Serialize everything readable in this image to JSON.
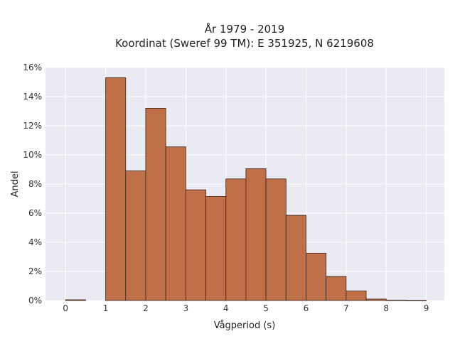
{
  "chart_data": {
    "type": "bar",
    "title_lines": [
      "År 1979 - 2019",
      "Koordinat (Sweref 99 TM): E 351925, N 6219608"
    ],
    "xlabel": "Vågperiod (s)",
    "ylabel": "Andel",
    "x_ticks": [
      0,
      1,
      2,
      3,
      4,
      5,
      6,
      7,
      8,
      9
    ],
    "y_ticks": [
      "0%",
      "2%",
      "4%",
      "6%",
      "8%",
      "10%",
      "12%",
      "14%",
      "16%"
    ],
    "xlim": [
      -0.5,
      9.45
    ],
    "ylim": [
      0,
      16
    ],
    "grid": true,
    "bar_color": "#c07048",
    "bar_edge_color": "#3a2418",
    "plot_background": "#eaeaf2",
    "bins": [
      {
        "x0": 0.0,
        "x1": 0.5,
        "value": 0.05
      },
      {
        "x0": 0.5,
        "x1": 1.0,
        "value": 0.0
      },
      {
        "x0": 1.0,
        "x1": 1.5,
        "value": 15.3
      },
      {
        "x0": 1.5,
        "x1": 2.0,
        "value": 8.9
      },
      {
        "x0": 2.0,
        "x1": 2.5,
        "value": 13.2
      },
      {
        "x0": 2.5,
        "x1": 3.0,
        "value": 10.55
      },
      {
        "x0": 3.0,
        "x1": 3.5,
        "value": 7.6
      },
      {
        "x0": 3.5,
        "x1": 4.0,
        "value": 7.15
      },
      {
        "x0": 4.0,
        "x1": 4.5,
        "value": 8.35
      },
      {
        "x0": 4.5,
        "x1": 5.0,
        "value": 9.05
      },
      {
        "x0": 5.0,
        "x1": 5.5,
        "value": 8.35
      },
      {
        "x0": 5.5,
        "x1": 6.0,
        "value": 5.85
      },
      {
        "x0": 6.0,
        "x1": 6.5,
        "value": 3.25
      },
      {
        "x0": 6.5,
        "x1": 7.0,
        "value": 1.65
      },
      {
        "x0": 7.0,
        "x1": 7.5,
        "value": 0.65
      },
      {
        "x0": 7.5,
        "x1": 8.0,
        "value": 0.1
      },
      {
        "x0": 8.0,
        "x1": 8.5,
        "value": 0.02
      },
      {
        "x0": 8.5,
        "x1": 9.0,
        "value": 0.01
      }
    ]
  }
}
